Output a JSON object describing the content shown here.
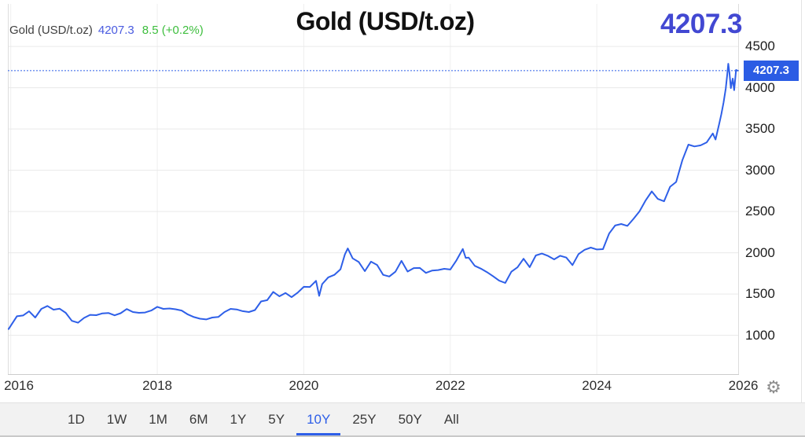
{
  "header": {
    "legend": {
      "name": "Gold (USD/t.oz)",
      "value": "4207.3",
      "change": "8.5 (+0.2%)"
    },
    "title": "Gold (USD/t.oz)",
    "big_price": "4207.3"
  },
  "chart_data": {
    "type": "line",
    "title": "Gold (USD/t.oz)",
    "xlabel": "",
    "ylabel": "",
    "xlim": [
      2015.96,
      2025.94
    ],
    "ylim": [
      520,
      5015
    ],
    "x_ticks": [
      2016,
      2018,
      2020,
      2022,
      2024,
      2026
    ],
    "x_tick_labels": [
      "2016",
      "2018",
      "2020",
      "2022",
      "2024",
      "2026"
    ],
    "y_ticks": [
      1000,
      1500,
      2000,
      2500,
      3000,
      3500,
      4000,
      4500
    ],
    "grid": true,
    "legend_position": "top-left",
    "current_price": 4207.3,
    "price_badge": "4207.3",
    "series": [
      {
        "name": "Gold (USD/t.oz)",
        "color": "#2e5fe8",
        "x": [
          2015.97,
          2016.083,
          2016.167,
          2016.25,
          2016.333,
          2016.417,
          2016.5,
          2016.583,
          2016.667,
          2016.75,
          2016.833,
          2016.917,
          2017,
          2017.083,
          2017.167,
          2017.25,
          2017.333,
          2017.417,
          2017.5,
          2017.583,
          2017.667,
          2017.75,
          2017.833,
          2017.917,
          2018,
          2018.083,
          2018.167,
          2018.25,
          2018.333,
          2018.417,
          2018.5,
          2018.583,
          2018.667,
          2018.75,
          2018.833,
          2018.917,
          2019,
          2019.083,
          2019.167,
          2019.25,
          2019.333,
          2019.417,
          2019.5,
          2019.583,
          2019.667,
          2019.75,
          2019.833,
          2019.917,
          2020,
          2020.083,
          2020.167,
          2020.21,
          2020.25,
          2020.333,
          2020.417,
          2020.5,
          2020.56,
          2020.6,
          2020.667,
          2020.75,
          2020.833,
          2020.917,
          2021,
          2021.083,
          2021.167,
          2021.25,
          2021.333,
          2021.417,
          2021.5,
          2021.583,
          2021.667,
          2021.75,
          2021.833,
          2021.917,
          2022,
          2022.083,
          2022.17,
          2022.21,
          2022.25,
          2022.333,
          2022.417,
          2022.5,
          2022.583,
          2022.667,
          2022.75,
          2022.833,
          2022.917,
          2023,
          2023.083,
          2023.167,
          2023.25,
          2023.333,
          2023.417,
          2023.5,
          2023.583,
          2023.667,
          2023.75,
          2023.833,
          2023.917,
          2024,
          2024.083,
          2024.167,
          2024.25,
          2024.333,
          2024.417,
          2024.5,
          2024.583,
          2024.667,
          2024.75,
          2024.833,
          2024.917,
          2025,
          2025.083,
          2025.167,
          2025.25,
          2025.333,
          2025.417,
          2025.5,
          2025.583,
          2025.62,
          2025.67,
          2025.7,
          2025.73,
          2025.76,
          2025.78,
          2025.794,
          2025.81,
          2025.83,
          2025.855,
          2025.875,
          2025.9,
          2025.92
        ],
        "y": [
          1075,
          1230,
          1240,
          1290,
          1215,
          1320,
          1355,
          1310,
          1322,
          1272,
          1175,
          1152,
          1210,
          1248,
          1244,
          1266,
          1270,
          1242,
          1268,
          1318,
          1282,
          1272,
          1276,
          1300,
          1345,
          1320,
          1325,
          1315,
          1300,
          1252,
          1221,
          1201,
          1192,
          1215,
          1222,
          1282,
          1320,
          1313,
          1292,
          1282,
          1306,
          1410,
          1426,
          1526,
          1472,
          1512,
          1462,
          1517,
          1588,
          1586,
          1660,
          1478,
          1620,
          1702,
          1732,
          1800,
          1980,
          2052,
          1932,
          1888,
          1777,
          1892,
          1852,
          1732,
          1712,
          1770,
          1902,
          1772,
          1814,
          1816,
          1756,
          1784,
          1790,
          1806,
          1797,
          1908,
          2046,
          1938,
          1942,
          1842,
          1808,
          1766,
          1716,
          1662,
          1634,
          1770,
          1824,
          1928,
          1826,
          1968,
          1990,
          1962,
          1920,
          1964,
          1942,
          1850,
          1984,
          2036,
          2063,
          2040,
          2044,
          2232,
          2330,
          2348,
          2326,
          2410,
          2502,
          2636,
          2744,
          2652,
          2624,
          2800,
          2858,
          3122,
          3310,
          3288,
          3302,
          3338,
          3446,
          3372,
          3560,
          3680,
          3820,
          3990,
          4160,
          4290,
          4180,
          3995,
          4110,
          3970,
          4215,
          4207.3
        ]
      }
    ]
  },
  "toolbar": {
    "ranges": [
      "1D",
      "1W",
      "1M",
      "6M",
      "1Y",
      "5Y",
      "10Y",
      "25Y",
      "50Y",
      "All"
    ],
    "selected": "10Y"
  },
  "icons": {
    "settings": "⚙"
  },
  "colors": {
    "line_blue": "#2e5fe8",
    "value_blue": "#4a5be0",
    "big_price_blue": "#4248d2",
    "positive_green": "#3dbe3d",
    "badge_bg": "#2b5ce4",
    "badge_text": "#ffffff",
    "grid": "#e9e9e9",
    "toolbar_bg": "#f2f2f2"
  }
}
